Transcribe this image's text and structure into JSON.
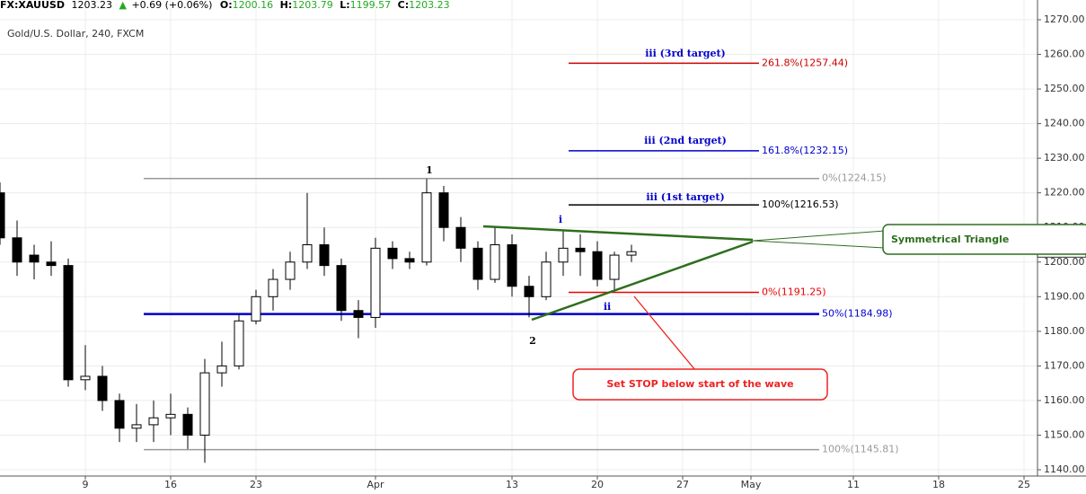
{
  "header": {
    "symbol": "FX:XAUUSD",
    "last": "1203.23",
    "arrow": "▲",
    "change": "+0.69 (+0.06%)",
    "ohlc": [
      {
        "label": "O:",
        "value": "1200.16"
      },
      {
        "label": "H:",
        "value": "1203.79"
      },
      {
        "label": "L:",
        "value": "1199.57"
      },
      {
        "label": "C:",
        "value": "1203.23"
      }
    ]
  },
  "chart_data": {
    "type": "candlestick",
    "title": "Gold/U.S. Dollar, 240, FXCM",
    "categories": [
      null,
      null,
      null,
      null,
      null,
      "9",
      null,
      null,
      null,
      null,
      "16",
      null,
      null,
      null,
      null,
      "23",
      null,
      null,
      null,
      null,
      null,
      null,
      "Apr",
      null,
      null,
      null,
      null,
      null,
      null,
      null,
      "13",
      null,
      null,
      null,
      null,
      "20",
      null,
      null,
      null,
      null,
      "27",
      null,
      null,
      null,
      "May",
      null,
      null,
      null,
      null,
      null,
      "11",
      null,
      null,
      null,
      null,
      "18",
      null,
      null,
      null,
      null,
      "25"
    ],
    "open": [
      1220,
      1207,
      1202,
      1200,
      1199,
      1166,
      1167,
      1160,
      1152,
      1153,
      1155,
      1156,
      1150,
      1168,
      1170,
      1183,
      1190,
      1195,
      1200,
      1205,
      1199,
      1186,
      1184,
      1204,
      1201,
      1200,
      1220,
      1210,
      1204,
      1195,
      1205,
      1193,
      1190,
      1200,
      1204,
      1203,
      1195,
      1202,
      null,
      null,
      null,
      null,
      null,
      null,
      null,
      null,
      null,
      null,
      null,
      null,
      null,
      null,
      null,
      null,
      null,
      null,
      null,
      null,
      null,
      null,
      null
    ],
    "high": [
      1223,
      1212,
      1205,
      1206,
      1201,
      1176,
      1170,
      1162,
      1159,
      1160,
      1162,
      1158,
      1172,
      1177,
      1185,
      1192,
      1198,
      1203,
      1220,
      1210,
      1201,
      1189,
      1207,
      1206,
      1203,
      1224,
      1222,
      1213,
      1206,
      1210,
      1208,
      1196,
      1203,
      1209,
      1208,
      1206,
      1203,
      1205,
      null,
      null,
      null,
      null,
      null,
      null,
      null,
      null,
      null,
      null,
      null,
      null,
      null,
      null,
      null,
      null,
      null,
      null,
      null,
      null,
      null,
      null,
      null
    ],
    "low": [
      1205,
      1196,
      1195,
      1196,
      1164,
      1163,
      1157,
      1148,
      1148,
      1148,
      1150,
      1146,
      1142,
      1164,
      1169,
      1182,
      1186,
      1192,
      1198,
      1196,
      1183,
      1178,
      1181,
      1198,
      1198,
      1199,
      1206,
      1200,
      1192,
      1194,
      1190,
      1184,
      1189,
      1196,
      1196,
      1193,
      1192,
      1200,
      null,
      null,
      null,
      null,
      null,
      null,
      null,
      null,
      null,
      null,
      null,
      null,
      null,
      null,
      null,
      null,
      null,
      null,
      null,
      null,
      null,
      null,
      null
    ],
    "close": [
      1207,
      1200,
      1200,
      1199,
      1166,
      1167,
      1160,
      1152,
      1153,
      1155,
      1156,
      1150,
      1168,
      1170,
      1183,
      1190,
      1195,
      1200,
      1205,
      1199,
      1186,
      1184,
      1204,
      1201,
      1200,
      1220,
      1210,
      1204,
      1195,
      1205,
      1193,
      1190,
      1200,
      1204,
      1203,
      1195,
      1202,
      1203,
      null,
      null,
      null,
      null,
      null,
      null,
      null,
      null,
      null,
      null,
      null,
      null,
      null,
      null,
      null,
      null,
      null,
      null,
      null,
      null,
      null,
      null,
      null
    ],
    "up_color": "#ffffff",
    "down_color": "#000000",
    "ylim": [
      1140,
      1270
    ],
    "yticks": [
      {
        "value": 1140,
        "label": "1140.00"
      },
      {
        "value": 1150,
        "label": "1150.00"
      },
      {
        "value": 1160,
        "label": "1160.00"
      },
      {
        "value": 1170,
        "label": "1170.00"
      },
      {
        "value": 1180,
        "label": "1180.00"
      },
      {
        "value": 1190,
        "label": "1190.00"
      },
      {
        "value": 1200,
        "label": "1200.00"
      },
      {
        "value": 1210,
        "label": "1210.00"
      },
      {
        "value": 1220,
        "label": "1220.00"
      },
      {
        "value": 1230,
        "label": "1230.00"
      },
      {
        "value": 1240,
        "label": "1240.00"
      },
      {
        "value": 1250,
        "label": "1250.00"
      },
      {
        "value": 1260,
        "label": "1260.00"
      },
      {
        "value": 1270,
        "label": "1270.00"
      }
    ],
    "grid": true,
    "last_price": {
      "value": 1203.23,
      "label": "1203.23"
    },
    "levels": [
      {
        "label": "261.8%(1257.44)",
        "value": 1257.44,
        "color": "#cc0000"
      },
      {
        "label": "161.8%(1232.15)",
        "value": 1232.15,
        "color": "#0000cc"
      },
      {
        "label": "0%(1224.15)",
        "value": 1224.15,
        "color": "#999999"
      },
      {
        "label": "100%(1216.53)",
        "value": 1216.53,
        "color": "#000000"
      },
      {
        "label": "0%(1191.25)",
        "value": 1191.25,
        "color": "#ee0000"
      },
      {
        "label": "50%(1184.98)",
        "value": 1184.98,
        "color": "#0000cc"
      },
      {
        "label": "100%(1145.81)",
        "value": 1145.81,
        "color": "#999999"
      }
    ],
    "annotations": [
      "iii (3rd target)",
      "iii (2nd target)",
      "iii (1st target)",
      "1",
      "2",
      "i",
      "ii",
      "Symmetrical Triangle",
      "Set STOP below start of the wave"
    ]
  }
}
